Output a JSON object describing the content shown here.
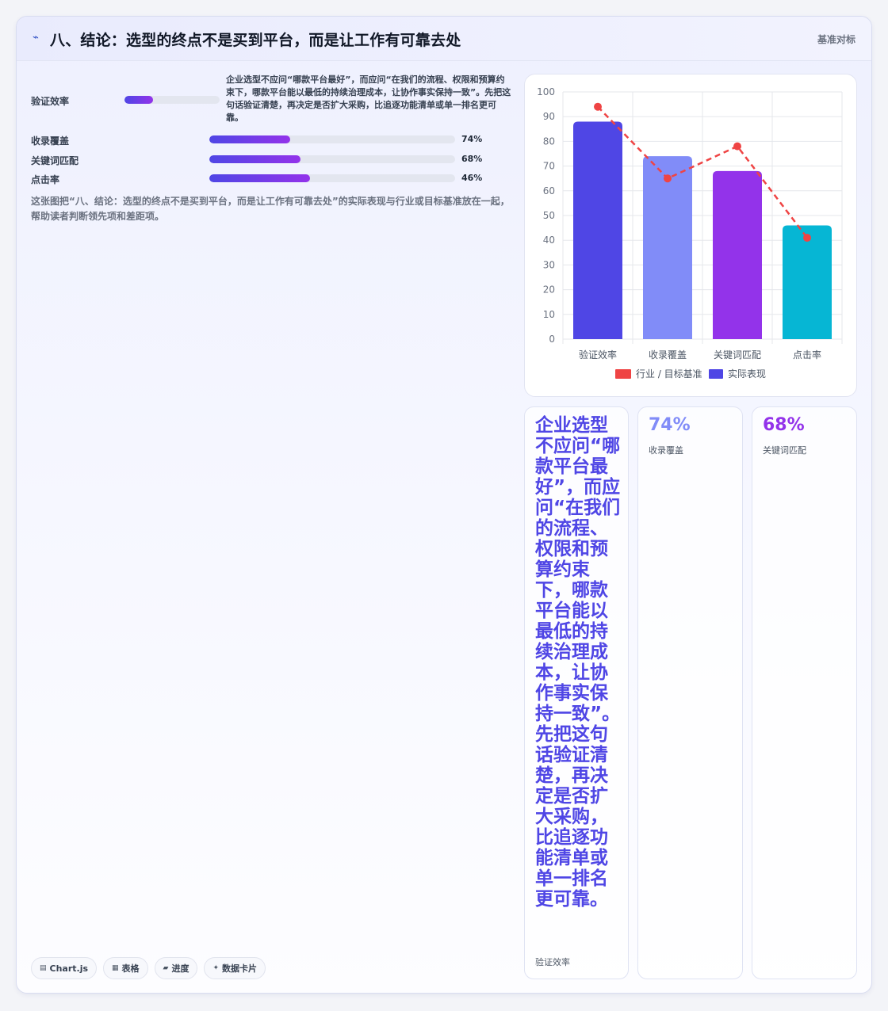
{
  "header": {
    "title": "八、结论：选型的终点不是买到平台，而是让工作有可靠去处",
    "tag": "基准对标"
  },
  "metrics": [
    {
      "label": "验证效率",
      "value": 88,
      "pct_text": ""
    },
    {
      "label": "收录覆盖",
      "value": 74,
      "pct_text": "74%"
    },
    {
      "label": "关键词匹配",
      "value": 68,
      "pct_text": "68%"
    },
    {
      "label": "点击率",
      "value": 46,
      "pct_text": "46%"
    }
  ],
  "note": "企业选型不应问“哪款平台最好”，而应问“在我们的流程、权限和预算约束下，哪款平台能以最低的持续治理成本，让协作事实保持一致”。先把这句话验证清楚，再决定是否扩大采购，比追逐功能清单或单一排名更可靠。",
  "description": "这张图把“八、结论：选型的终点不是买到平台，而是让工作有可靠去处”的实际表现与行业或目标基准放在一起，帮助读者判断领先项和差距项。",
  "chips": [
    {
      "icon": "chart-icon",
      "label": "Chart.js"
    },
    {
      "icon": "table-icon",
      "label": "表格"
    },
    {
      "icon": "progress-icon",
      "label": "进度"
    },
    {
      "icon": "card-icon",
      "label": "数据卡片"
    }
  ],
  "stats": [
    {
      "big": "企业选型不应问“哪款平台最好”，而应问“在我们的流程、权限和预算约束下，哪款平台能以最低的持续治理成本，让协作事实保持一致”。先把这句话验证清楚，再决定是否扩大采购，比追逐功能清单或单一排名更可靠。",
      "sub": "验证效率",
      "color": "#4f46e5"
    },
    {
      "big": "74%",
      "sub": "收录覆盖",
      "color": "#818cf8"
    },
    {
      "big": "68%",
      "sub": "关键词匹配",
      "color": "#9333ea"
    }
  ],
  "chart_data": {
    "type": "bar",
    "categories": [
      "验证效率",
      "收录覆盖",
      "关键词匹配",
      "点击率"
    ],
    "series": [
      {
        "name": "行业 / 目标基准",
        "type": "line",
        "values": [
          94,
          65,
          78,
          41
        ],
        "color": "#ef4444"
      },
      {
        "name": "实际表现",
        "type": "bar",
        "values": [
          88,
          74,
          68,
          46
        ],
        "colors": [
          "#4f46e5",
          "#818cf8",
          "#9333ea",
          "#06b6d4"
        ]
      }
    ],
    "ylim": [
      0,
      100
    ],
    "yticks": [
      0,
      10,
      20,
      30,
      40,
      50,
      60,
      70,
      80,
      90,
      100
    ],
    "grid": true,
    "legend": "bottom"
  }
}
